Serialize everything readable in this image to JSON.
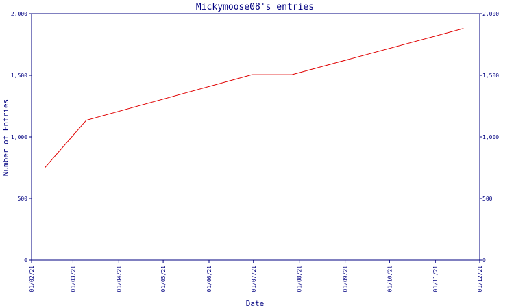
{
  "chart_data": {
    "type": "line",
    "title": "Mickymoose08's entries",
    "xlabel": "Date",
    "ylabel": "Number of Entries",
    "x_ticks": [
      "01/02/21",
      "01/03/21",
      "01/04/21",
      "01/05/21",
      "01/06/21",
      "01/07/21",
      "01/08/21",
      "01/09/21",
      "01/10/21",
      "01/11/21",
      "01/12/21"
    ],
    "y_ticks": [
      "0",
      "500",
      "1,000",
      "1,500",
      "2,000"
    ],
    "ylim": [
      0,
      2000
    ],
    "xlim": [
      "2021-02-01",
      "2021-12-01"
    ],
    "grid": false,
    "right_axis_mirrored": true,
    "colors": {
      "axis": "#000080",
      "series": "#e00000"
    },
    "series": [
      {
        "points": [
          {
            "x": "2021-02-10",
            "y": 750
          },
          {
            "x": "2021-03-10",
            "y": 1135
          },
          {
            "x": "2021-06-30",
            "y": 1505
          },
          {
            "x": "2021-07-27",
            "y": 1505
          },
          {
            "x": "2021-11-20",
            "y": 1880
          }
        ]
      }
    ]
  }
}
